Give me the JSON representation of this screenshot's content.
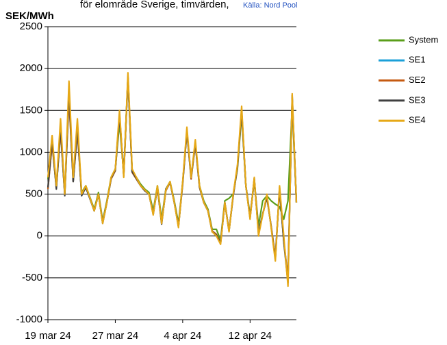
{
  "chart_data": {
    "type": "line",
    "title": "för elområde Sverige, timvärden,",
    "source": "Källa: Nord Pool",
    "y_label": "SEK/MWh",
    "ylim": [
      -1000,
      2500
    ],
    "yticks": [
      -1000,
      -500,
      0,
      500,
      1000,
      1500,
      2000,
      2500
    ],
    "grid": true,
    "legend": "right",
    "categories": [
      "19 mar 24",
      null,
      null,
      null,
      null,
      null,
      null,
      null,
      null,
      null,
      null,
      null,
      null,
      null,
      null,
      null,
      "27 mar 24",
      null,
      null,
      null,
      null,
      null,
      null,
      null,
      null,
      null,
      null,
      null,
      null,
      null,
      null,
      null,
      "4 apr 24",
      null,
      null,
      null,
      null,
      null,
      null,
      null,
      null,
      null,
      null,
      null,
      null,
      null,
      null,
      null,
      "12 apr 24",
      null,
      null,
      null,
      null,
      null,
      null,
      null,
      null,
      null,
      null,
      null
    ],
    "series": [
      {
        "name": "System",
        "color": "#5a9e1a",
        "values": [
          680,
          1150,
          600,
          1300,
          520,
          1700,
          700,
          1300,
          520,
          600,
          460,
          320,
          520,
          180,
          420,
          700,
          800,
          1350,
          750,
          1900,
          780,
          700,
          620,
          560,
          520,
          300,
          600,
          200,
          560,
          650,
          420,
          150,
          640,
          1250,
          700,
          1100,
          600,
          420,
          320,
          80,
          80,
          -50,
          420,
          450,
          500,
          800,
          1450,
          600,
          250,
          650,
          120,
          420,
          480,
          420,
          380,
          350,
          200,
          420,
          1550,
          420
        ]
      },
      {
        "name": "SE1",
        "color": "#1ba0d8",
        "values": [
          560,
          1100,
          580,
          1250,
          500,
          1650,
          650,
          1250,
          500,
          580,
          450,
          300,
          500,
          160,
          400,
          680,
          780,
          1450,
          720,
          1900,
          760,
          680,
          600,
          540,
          500,
          260,
          580,
          160,
          540,
          640,
          400,
          120,
          620,
          1250,
          680,
          1100,
          580,
          400,
          300,
          60,
          20,
          -80,
          400,
          60,
          480,
          820,
          1500,
          600,
          220,
          680,
          40,
          260,
          460,
          120,
          -250,
          560,
          -60,
          -500,
          1650,
          400
        ]
      },
      {
        "name": "SE2",
        "color": "#c55a11",
        "values": [
          560,
          1100,
          580,
          1250,
          500,
          1650,
          650,
          1250,
          500,
          580,
          450,
          300,
          500,
          160,
          400,
          680,
          780,
          1450,
          720,
          1900,
          760,
          680,
          600,
          540,
          500,
          260,
          580,
          160,
          540,
          640,
          400,
          120,
          620,
          1250,
          680,
          1100,
          580,
          400,
          300,
          60,
          20,
          -80,
          400,
          60,
          480,
          820,
          1500,
          600,
          220,
          680,
          40,
          260,
          460,
          120,
          -250,
          560,
          -60,
          -500,
          1650,
          400
        ]
      },
      {
        "name": "SE3",
        "color": "#404040",
        "values": [
          580,
          1150,
          560,
          1300,
          480,
          1750,
          650,
          1300,
          480,
          580,
          440,
          300,
          500,
          150,
          400,
          690,
          790,
          1450,
          720,
          1900,
          770,
          690,
          600,
          540,
          500,
          260,
          580,
          140,
          560,
          640,
          400,
          110,
          640,
          1260,
          700,
          1120,
          590,
          400,
          300,
          50,
          10,
          -90,
          400,
          60,
          490,
          830,
          1500,
          600,
          210,
          690,
          30,
          260,
          470,
          110,
          -280,
          580,
          -70,
          -560,
          1680,
          400
        ]
      },
      {
        "name": "SE4",
        "color": "#e6a817",
        "values": [
          700,
          1200,
          600,
          1400,
          500,
          1850,
          700,
          1400,
          500,
          600,
          450,
          300,
          500,
          150,
          400,
          700,
          800,
          1500,
          700,
          1950,
          800,
          700,
          600,
          550,
          500,
          250,
          600,
          150,
          550,
          650,
          400,
          100,
          650,
          1300,
          700,
          1150,
          600,
          400,
          300,
          50,
          0,
          -100,
          400,
          50,
          500,
          850,
          1550,
          600,
          200,
          700,
          0,
          250,
          500,
          100,
          -300,
          600,
          0,
          -600,
          1700,
          400
        ]
      }
    ]
  }
}
